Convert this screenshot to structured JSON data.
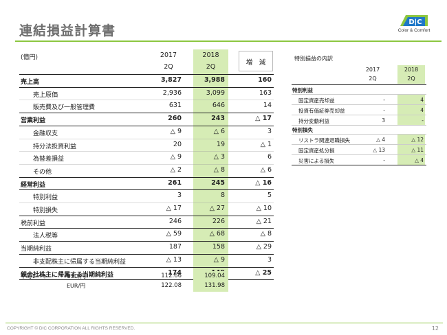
{
  "page": {
    "title": "連結損益計算書",
    "logo_text": "Color & Comfort",
    "footer": "COPYRIGHT © DIC CORPORATION ALL RIGHTS RESERVED.",
    "page_number": "12"
  },
  "main_table": {
    "unit": "(億円)",
    "col_2017": [
      "2017",
      "2Q"
    ],
    "col_2018": [
      "2018",
      "2Q"
    ],
    "col_change": "増　減",
    "rows": [
      {
        "label": "売上高",
        "v2017": "3,827",
        "v2018": "3,988",
        "change": "160",
        "bold": true
      },
      {
        "label": "売上原価",
        "v2017": "2,936",
        "v2018": "3,099",
        "change": "163",
        "bold": false
      },
      {
        "label": "販売費及び一般管理費",
        "v2017": "631",
        "v2018": "646",
        "change": "14",
        "bold": false
      },
      {
        "label": "営業利益",
        "v2017": "260",
        "v2018": "243",
        "change": "△ 17",
        "bold": true
      },
      {
        "label": "金融収支",
        "v2017": "△ 9",
        "v2018": "△ 6",
        "change": "3",
        "bold": false
      },
      {
        "label": "持分法投資利益",
        "v2017": "20",
        "v2018": "19",
        "change": "△ 1",
        "bold": false
      },
      {
        "label": "為替差損益",
        "v2017": "△ 9",
        "v2018": "△ 3",
        "change": "6",
        "bold": false
      },
      {
        "label": "その他",
        "v2017": "△ 2",
        "v2018": "△ 8",
        "change": "△ 6",
        "bold": false
      },
      {
        "label": "経常利益",
        "v2017": "261",
        "v2018": "245",
        "change": "△ 16",
        "bold": true
      },
      {
        "label": "特別利益",
        "v2017": "3",
        "v2018": "8",
        "change": "5",
        "bold": false
      },
      {
        "label": "特別損失",
        "v2017": "△ 17",
        "v2018": "△ 27",
        "change": "△ 10",
        "bold": false
      },
      {
        "label": "税前利益",
        "v2017": "246",
        "v2018": "226",
        "change": "△ 21",
        "bold": false
      },
      {
        "label": "法人税等",
        "v2017": "△ 59",
        "v2018": "△ 68",
        "change": "△ 8",
        "bold": false
      },
      {
        "label": "当期純利益",
        "v2017": "187",
        "v2018": "158",
        "change": "△ 29",
        "bold": false
      },
      {
        "label": "非支配株主に帰属する当期純利益",
        "v2017": "△ 13",
        "v2018": "△ 9",
        "change": "3",
        "bold": false
      },
      {
        "label": "親会社株主に帰属する当期純利益",
        "v2017": "174",
        "v2018": "149",
        "change": "△ 25",
        "bold": true
      }
    ],
    "rates_label": "平均レート",
    "rates": [
      {
        "currency": "USD/円",
        "v2017": "112.66",
        "v2018": "109.04"
      },
      {
        "currency": "EUR/円",
        "v2017": "122.08",
        "v2018": "131.98"
      }
    ]
  },
  "side_table": {
    "title": "特別損益の内訳",
    "col_2017": [
      "2017",
      "2Q"
    ],
    "col_2018": [
      "2018",
      "2Q"
    ],
    "sections": [
      {
        "heading": "特別利益",
        "items": [
          {
            "label": "固定資産売却益",
            "v2017": "-",
            "v2018": "4"
          },
          {
            "label": "投資有価証券売却益",
            "v2017": "-",
            "v2018": "4"
          },
          {
            "label": "持分変動利益",
            "v2017": "3",
            "v2018": "-"
          }
        ]
      },
      {
        "heading": "特別損失",
        "items": [
          {
            "label": "リストラ関連退職損失",
            "v2017": "△ 4",
            "v2018": "△ 12"
          },
          {
            "label": "固定資産処分損",
            "v2017": "△ 13",
            "v2018": "△ 11"
          },
          {
            "label": "災害による損失",
            "v2017": "-",
            "v2018": "△ 4"
          }
        ]
      }
    ]
  },
  "colors": {
    "accent": "#8cc63f",
    "highlight": "#d6ecb5",
    "logo_blue": "#1e78c8",
    "logo_green": "#8cc63f"
  }
}
